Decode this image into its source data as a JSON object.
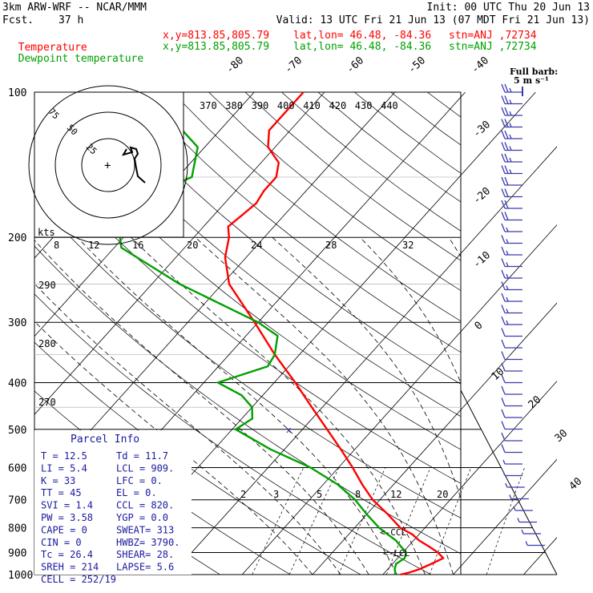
{
  "header": {
    "model": "3km ARW-WRF -- NCAR/MMM",
    "init": "Init: 00 UTC Thu 20 Jun 13",
    "fcst_label": "Fcst.",
    "fcst_value": "37 h",
    "valid": "Valid: 13 UTC Fri 21 Jun 13 (07 MDT Fri 21 Jun 13)",
    "temp_line": {
      "name": "Temperature",
      "xy": "x,y=813.85,805.79",
      "latlon": "lat,lon= 46.48, -84.36",
      "stn": "stn=ANJ ,72734",
      "color": "#ff0000"
    },
    "dew_line": {
      "name": "Dewpoint temperature",
      "xy": "x,y=813.85,805.79",
      "latlon": "lat,lon= 46.48, -84.36",
      "stn": "stn=ANJ ,72734",
      "color": "#00a000"
    }
  },
  "barb_legend": {
    "title": "Full barb:",
    "value": "5 m s⁻¹"
  },
  "hodograph": {
    "unit_label": "kts",
    "ring_labels": [
      "25",
      "50",
      "75"
    ],
    "max_kts": 75
  },
  "parcel_info": {
    "title": "Parcel Info",
    "rows": [
      [
        "T  =    12.5",
        "Td =  11.7"
      ],
      [
        "LI =     5.4",
        "LCL =  909."
      ],
      [
        "K  =      33",
        "LFC =    0."
      ],
      [
        "TT =      45",
        "EL  =    0."
      ],
      [
        "SVI =    1.4",
        "CCL =  820."
      ],
      [
        "PW =    3.58",
        "YGP =  0.0"
      ],
      [
        "CAPE =     0",
        "SWEAT=  313"
      ],
      [
        "CIN =      0",
        "HWBZ= 3790."
      ],
      [
        "Tc =    26.4",
        "SHEAR=  28."
      ],
      [
        "SREH =   214",
        "LAPSE=  5.6"
      ],
      [
        "CELL = 252/19",
        ""
      ]
    ]
  },
  "markers": {
    "ccl": "<-CCL",
    "lcl": "<-LCL"
  },
  "chart_data": {
    "type": "line",
    "title": "",
    "diagram": "skew-T log-p",
    "pressure_axis": {
      "min": 100,
      "max": 1000,
      "scale": "log",
      "ticks": [
        100,
        200,
        300,
        400,
        500,
        600,
        700,
        800,
        900,
        1000
      ]
    },
    "temperature_axis": {
      "ticks": [
        -80,
        -70,
        -60,
        -50,
        -40,
        -30,
        -20,
        -10,
        0,
        10,
        20,
        30,
        40
      ]
    },
    "theta_labels": [
      "370",
      "380",
      "390",
      "400",
      "410",
      "420",
      "430",
      "440"
    ],
    "theta_left_labels": [
      "290",
      "280",
      "270"
    ],
    "hodo_scale_labels": [
      "8",
      "12",
      "16",
      "20",
      "24",
      "28",
      "32"
    ],
    "mixing_ratio_labels": [
      "2",
      "3",
      "5",
      "8",
      "12",
      "20"
    ],
    "series": [
      {
        "name": "Temperature",
        "color": "#ff0000",
        "p": [
          1000,
          990,
          975,
          950,
          925,
          900,
          875,
          850,
          825,
          800,
          750,
          700,
          650,
          600,
          550,
          500,
          450,
          400,
          350,
          300,
          250,
          220,
          200,
          190,
          180,
          170,
          160,
          150,
          140,
          130,
          120,
          110,
          100
        ],
        "t": [
          12.5,
          13.5,
          14.5,
          15.5,
          16.5,
          15.0,
          13.0,
          10.8,
          9.0,
          6.5,
          3.0,
          -1.0,
          -4.5,
          -8.0,
          -12.0,
          -16.5,
          -21.5,
          -27.0,
          -33.5,
          -40.5,
          -49.0,
          -53.0,
          -55.0,
          -56.5,
          -56.0,
          -55.5,
          -56.0,
          -56.0,
          -57.5,
          -61.0,
          -63.0,
          -63.0,
          -63.0
        ]
      },
      {
        "name": "Dewpoint temperature",
        "color": "#00a000",
        "p": [
          1000,
          990,
          975,
          950,
          925,
          900,
          875,
          850,
          825,
          800,
          750,
          700,
          650,
          600,
          550,
          500,
          475,
          450,
          425,
          400,
          370,
          350,
          320,
          300,
          250,
          210,
          200,
          180,
          160,
          150,
          130,
          110,
          100
        ],
        "t": [
          11.7,
          11.5,
          11.0,
          10.5,
          11.0,
          10.5,
          9.0,
          7.5,
          5.5,
          3.5,
          0.0,
          -3.5,
          -8.0,
          -14.0,
          -22.0,
          -29.5,
          -28.5,
          -30.0,
          -33.0,
          -38.0,
          -33.0,
          -33.5,
          -35.5,
          -40.0,
          -56.0,
          -69.0,
          -70.5,
          -73.0,
          -71.0,
          -68.0,
          -71.0,
          -80.0,
          -84.0
        ]
      }
    ],
    "wind_profile": {
      "p": [
        1000,
        975,
        950,
        925,
        900,
        875,
        850,
        800,
        750,
        700,
        650,
        600,
        550,
        500,
        450,
        400,
        350,
        300,
        250,
        200,
        150,
        100
      ],
      "dir": [
        160,
        190,
        220,
        240,
        250,
        255,
        255,
        255,
        255,
        255,
        255,
        258,
        260,
        262,
        265,
        268,
        270,
        270,
        270,
        270,
        268,
        265
      ],
      "speed_ms": [
        2,
        3,
        4,
        4,
        5,
        5,
        6,
        6,
        7,
        8,
        9,
        10,
        11,
        13,
        14,
        16,
        18,
        21,
        24,
        27,
        25,
        22
      ]
    }
  }
}
